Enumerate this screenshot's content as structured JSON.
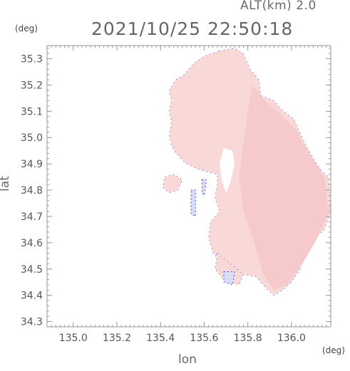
{
  "header": {
    "altitude_label": "ALT(km)",
    "altitude_value": "2.0",
    "timestamp": "2021/10/25 22:50:18"
  },
  "axes": {
    "y_unit": "(deg)",
    "x_unit": "(deg)",
    "y_label": "lat",
    "x_label": "lon",
    "x_ticks": [
      {
        "value": 135.0,
        "label": "135.0"
      },
      {
        "value": 135.2,
        "label": "135.2"
      },
      {
        "value": 135.4,
        "label": "135.4"
      },
      {
        "value": 135.6,
        "label": "135.6"
      },
      {
        "value": 135.8,
        "label": "135.8"
      },
      {
        "value": 136.0,
        "label": "136.0"
      }
    ],
    "y_ticks": [
      {
        "value": 35.3,
        "label": "35.3"
      },
      {
        "value": 35.2,
        "label": "35.2"
      },
      {
        "value": 35.1,
        "label": "35.1"
      },
      {
        "value": 35.0,
        "label": "35.0"
      },
      {
        "value": 34.9,
        "label": "34.9"
      },
      {
        "value": 34.8,
        "label": "34.8"
      },
      {
        "value": 34.7,
        "label": "34.7"
      },
      {
        "value": 34.6,
        "label": "34.6"
      },
      {
        "value": 34.5,
        "label": "34.5"
      },
      {
        "value": 34.4,
        "label": "34.4"
      },
      {
        "value": 34.3,
        "label": "34.3"
      }
    ],
    "x_range": [
      134.88,
      136.18
    ],
    "y_range": [
      34.28,
      35.35
    ]
  },
  "colors": {
    "field_fill": "#f9d8d8",
    "field_fill_dark": "#f6c9ca",
    "edge_blue": "#4d4de8",
    "weak_blue": "#d8dcf4",
    "frame": "#999999"
  },
  "field_regions": [
    {
      "name": "main-echo-region",
      "shade": "field_fill",
      "points": [
        [
          135.67,
          35.33
        ],
        [
          135.74,
          35.34
        ],
        [
          135.78,
          35.32
        ],
        [
          135.81,
          35.26
        ],
        [
          135.85,
          35.22
        ],
        [
          135.86,
          35.16
        ],
        [
          135.92,
          35.14
        ],
        [
          135.95,
          35.11
        ],
        [
          136.01,
          35.07
        ],
        [
          136.06,
          34.98
        ],
        [
          136.1,
          34.92
        ],
        [
          136.14,
          34.87
        ],
        [
          136.17,
          34.85
        ],
        [
          136.18,
          34.72
        ],
        [
          136.15,
          34.65
        ],
        [
          136.1,
          34.61
        ],
        [
          136.06,
          34.56
        ],
        [
          136.04,
          34.5
        ],
        [
          136.0,
          34.45
        ],
        [
          135.96,
          34.42
        ],
        [
          135.92,
          34.4
        ],
        [
          135.88,
          34.43
        ],
        [
          135.84,
          34.47
        ],
        [
          135.78,
          34.48
        ],
        [
          135.73,
          34.49
        ],
        [
          135.69,
          34.52
        ],
        [
          135.64,
          34.56
        ],
        [
          135.62,
          34.62
        ],
        [
          135.63,
          34.68
        ],
        [
          135.67,
          34.72
        ],
        [
          135.65,
          34.77
        ],
        [
          135.66,
          34.82
        ],
        [
          135.66,
          34.86
        ],
        [
          135.61,
          34.87
        ],
        [
          135.57,
          34.88
        ],
        [
          135.52,
          34.9
        ],
        [
          135.47,
          34.94
        ],
        [
          135.45,
          34.97
        ],
        [
          135.44,
          35.01
        ],
        [
          135.45,
          35.06
        ],
        [
          135.44,
          35.1
        ],
        [
          135.45,
          35.14
        ],
        [
          135.44,
          35.18
        ],
        [
          135.47,
          35.22
        ],
        [
          135.51,
          35.24
        ],
        [
          135.55,
          35.28
        ],
        [
          135.6,
          35.31
        ]
      ]
    },
    {
      "name": "east-echo-band",
      "shade": "field_fill_dark",
      "points": [
        [
          135.82,
          35.2
        ],
        [
          135.88,
          35.14
        ],
        [
          135.95,
          35.09
        ],
        [
          136.02,
          35.03
        ],
        [
          136.08,
          34.94
        ],
        [
          136.15,
          34.85
        ],
        [
          136.17,
          34.72
        ],
        [
          136.12,
          34.62
        ],
        [
          136.05,
          34.52
        ],
        [
          135.98,
          34.44
        ],
        [
          135.92,
          34.42
        ],
        [
          135.87,
          34.48
        ],
        [
          135.83,
          34.6
        ],
        [
          135.78,
          34.72
        ],
        [
          135.76,
          34.85
        ],
        [
          135.78,
          34.98
        ],
        [
          135.8,
          35.1
        ]
      ]
    },
    {
      "name": "western-echo-patch",
      "shade": "field_fill",
      "points": [
        [
          135.42,
          34.85
        ],
        [
          135.46,
          34.86
        ],
        [
          135.5,
          34.84
        ],
        [
          135.48,
          34.8
        ],
        [
          135.44,
          34.79
        ],
        [
          135.41,
          34.81
        ]
      ]
    },
    {
      "name": "southern-echo-lobe",
      "shade": "field_fill",
      "points": [
        [
          135.66,
          34.56
        ],
        [
          135.72,
          34.52
        ],
        [
          135.78,
          34.48
        ],
        [
          135.76,
          34.44
        ],
        [
          135.7,
          34.45
        ],
        [
          135.65,
          34.5
        ]
      ]
    }
  ],
  "weak_regions": [
    {
      "name": "weak-echo-west-a",
      "points": [
        [
          135.54,
          34.8
        ],
        [
          135.56,
          34.8
        ],
        [
          135.56,
          34.7
        ],
        [
          135.54,
          34.71
        ]
      ]
    },
    {
      "name": "weak-echo-west-b",
      "points": [
        [
          135.59,
          34.84
        ],
        [
          135.61,
          34.84
        ],
        [
          135.6,
          34.78
        ],
        [
          135.59,
          34.79
        ]
      ]
    },
    {
      "name": "weak-echo-south",
      "points": [
        [
          135.69,
          34.49
        ],
        [
          135.74,
          34.49
        ],
        [
          135.73,
          34.44
        ],
        [
          135.69,
          34.45
        ]
      ]
    }
  ],
  "gap_regions": [
    {
      "name": "clear-gap-center",
      "points": [
        [
          135.69,
          34.96
        ],
        [
          135.73,
          34.95
        ],
        [
          135.74,
          34.9
        ],
        [
          135.72,
          34.83
        ],
        [
          135.7,
          34.79
        ],
        [
          135.68,
          34.84
        ],
        [
          135.67,
          34.9
        ]
      ]
    }
  ]
}
